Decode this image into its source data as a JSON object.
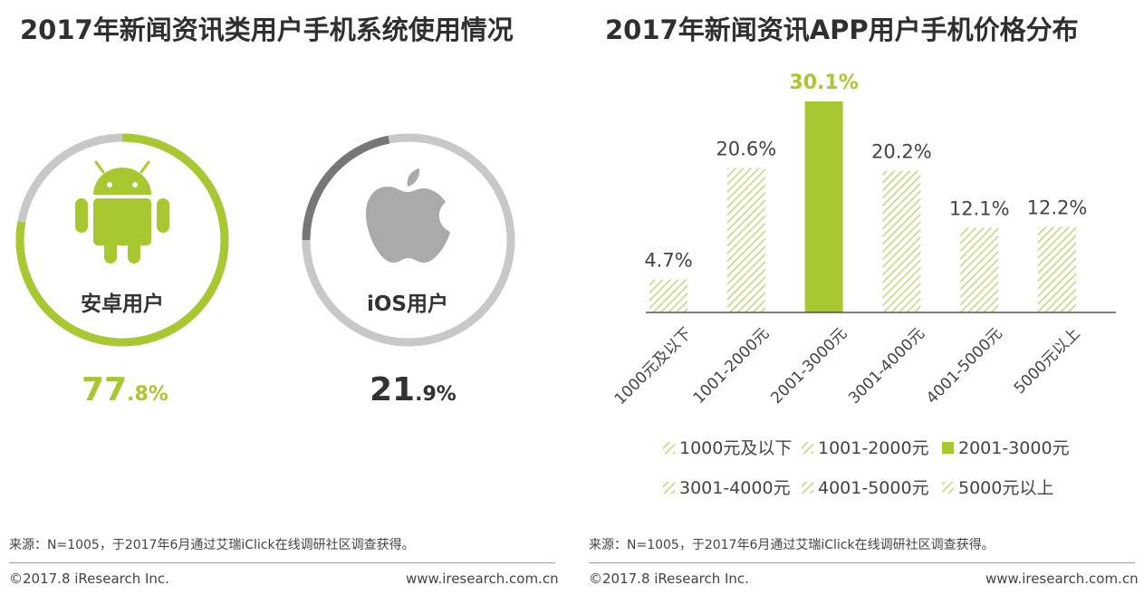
{
  "left": {
    "title": "2017年新闻资讯类用户手机系统使用情况",
    "android": {
      "label": "安卓用户",
      "value_int": "77",
      "value_dec": ".8%",
      "ring_value": 77.8,
      "color": "#a8c832",
      "icon": "android-icon"
    },
    "ios": {
      "label": "iOS用户",
      "value_int": "21",
      "value_dec": ".9%",
      "ring_value": 21.9,
      "color": "#333333",
      "icon": "apple-icon"
    },
    "source": "来源：N=1005，于2017年6月通过艾瑞iClick在线调研社区调查获得。",
    "copyright": "©2017.8 iResearch Inc.",
    "website": "www.iresearch.com.cn"
  },
  "right": {
    "title": "2017年新闻资讯APP用户手机价格分布",
    "source": "来源：N=1005，于2017年6月通过艾瑞iClick在线调研社区调查获得。",
    "copyright": "©2017.8 iResearch Inc.",
    "website": "www.iresearch.com.cn"
  },
  "colors": {
    "green": "#a8c832",
    "ring_track": "#c8c8c8",
    "ios_arc": "#777777",
    "hatch": "#c2d77a",
    "icon_gray": "#aaaaaa"
  },
  "chart_data": {
    "type": "bar",
    "title": "2017年新闻资讯APP用户手机价格分布",
    "categories": [
      "1000元及以下",
      "1001-2000元",
      "2001-3000元",
      "3001-4000元",
      "4001-5000元",
      "5000元以上"
    ],
    "values": [
      4.7,
      20.6,
      30.1,
      20.2,
      12.1,
      12.2
    ],
    "value_labels": [
      "4.7%",
      "20.6%",
      "30.1%",
      "20.2%",
      "12.1%",
      "12.2%"
    ],
    "highlight_index": 2,
    "ylim": [
      0,
      30.1
    ],
    "xlabel": "",
    "ylabel": "",
    "legend": [
      "1000元及以下",
      "1001-2000元",
      "2001-3000元",
      "3001-4000元",
      "4001-5000元",
      "5000元以上"
    ],
    "legend_position": "bottom"
  }
}
